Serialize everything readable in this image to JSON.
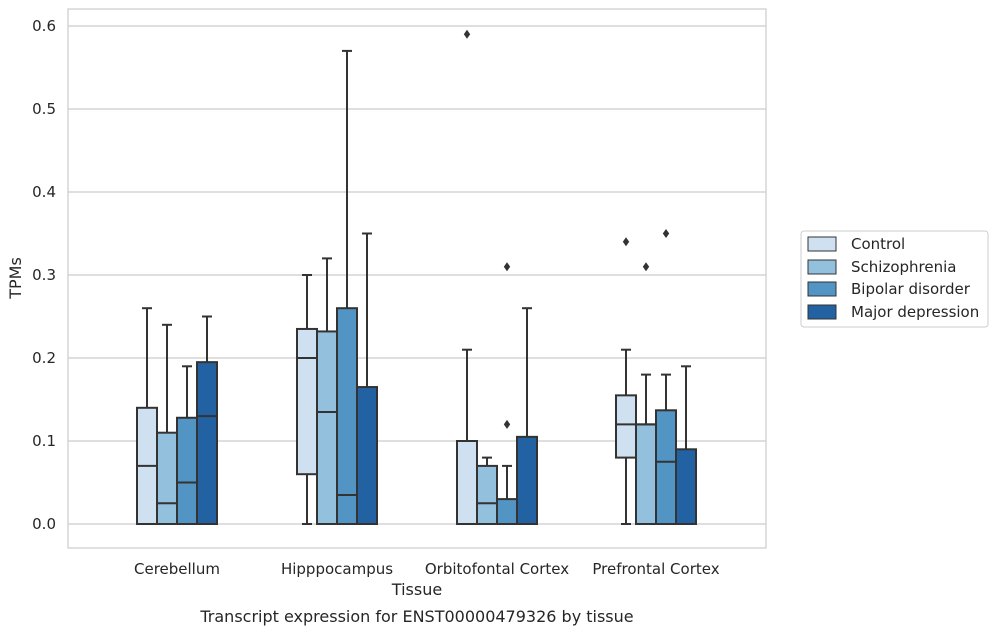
{
  "chart_data": {
    "type": "box",
    "title": "",
    "caption": "Transcript expression for ENST00000479326 by tissue",
    "xlabel": "Tissue",
    "ylabel": "TPMs",
    "ylim": [
      -0.03,
      0.62
    ],
    "yticks": [
      "0.0",
      "0.1",
      "0.2",
      "0.3",
      "0.4",
      "0.5",
      "0.6"
    ],
    "ytick_values": [
      0.0,
      0.1,
      0.2,
      0.3,
      0.4,
      0.5,
      0.6
    ],
    "grid": "horizontal",
    "legend_position": "right",
    "categories": [
      "Cerebellum",
      "Hipppocampus",
      "Orbitofontal Cortex",
      "Prefrontal Cortex"
    ],
    "series": [
      {
        "name": "Control",
        "color": "#cfe0f0",
        "boxes": [
          {
            "min": 0.0,
            "q1": 0.0,
            "median": 0.07,
            "q3": 0.14,
            "max": 0.26,
            "outliers": []
          },
          {
            "min": 0.0,
            "q1": 0.06,
            "median": 0.2,
            "q3": 0.235,
            "max": 0.3,
            "outliers": []
          },
          {
            "min": 0.0,
            "q1": 0.0,
            "median": 0.0,
            "q3": 0.1,
            "max": 0.21,
            "outliers": [
              0.59
            ]
          },
          {
            "min": 0.0,
            "q1": 0.08,
            "median": 0.12,
            "q3": 0.155,
            "max": 0.21,
            "outliers": [
              0.34
            ]
          }
        ]
      },
      {
        "name": "Schizophrenia",
        "color": "#93c0dc",
        "boxes": [
          {
            "min": 0.0,
            "q1": 0.0,
            "median": 0.025,
            "q3": 0.11,
            "max": 0.24,
            "outliers": []
          },
          {
            "min": 0.0,
            "q1": 0.0,
            "median": 0.135,
            "q3": 0.232,
            "max": 0.32,
            "outliers": []
          },
          {
            "min": 0.0,
            "q1": 0.0,
            "median": 0.025,
            "q3": 0.07,
            "max": 0.08,
            "outliers": []
          },
          {
            "min": 0.0,
            "q1": 0.0,
            "median": 0.12,
            "q3": 0.12,
            "max": 0.18,
            "outliers": [
              0.31
            ]
          }
        ]
      },
      {
        "name": "Bipolar disorder",
        "color": "#5294c3",
        "boxes": [
          {
            "min": 0.0,
            "q1": 0.0,
            "median": 0.05,
            "q3": 0.128,
            "max": 0.19,
            "outliers": []
          },
          {
            "min": 0.0,
            "q1": 0.0,
            "median": 0.035,
            "q3": 0.26,
            "max": 0.57,
            "outliers": []
          },
          {
            "min": 0.0,
            "q1": 0.0,
            "median": 0.0,
            "q3": 0.03,
            "max": 0.07,
            "outliers": [
              0.12,
              0.31
            ]
          },
          {
            "min": 0.0,
            "q1": 0.0,
            "median": 0.075,
            "q3": 0.137,
            "max": 0.18,
            "outliers": [
              0.35
            ]
          }
        ]
      },
      {
        "name": "Major depression",
        "color": "#2262a2",
        "boxes": [
          {
            "min": 0.0,
            "q1": 0.0,
            "median": 0.13,
            "q3": 0.195,
            "max": 0.25,
            "outliers": []
          },
          {
            "min": 0.0,
            "q1": 0.0,
            "median": 0.0,
            "q3": 0.165,
            "max": 0.35,
            "outliers": []
          },
          {
            "min": 0.0,
            "q1": 0.0,
            "median": 0.0,
            "q3": 0.105,
            "max": 0.26,
            "outliers": []
          },
          {
            "min": 0.0,
            "q1": 0.0,
            "median": 0.0,
            "q3": 0.09,
            "max": 0.19,
            "outliers": []
          }
        ]
      }
    ]
  }
}
